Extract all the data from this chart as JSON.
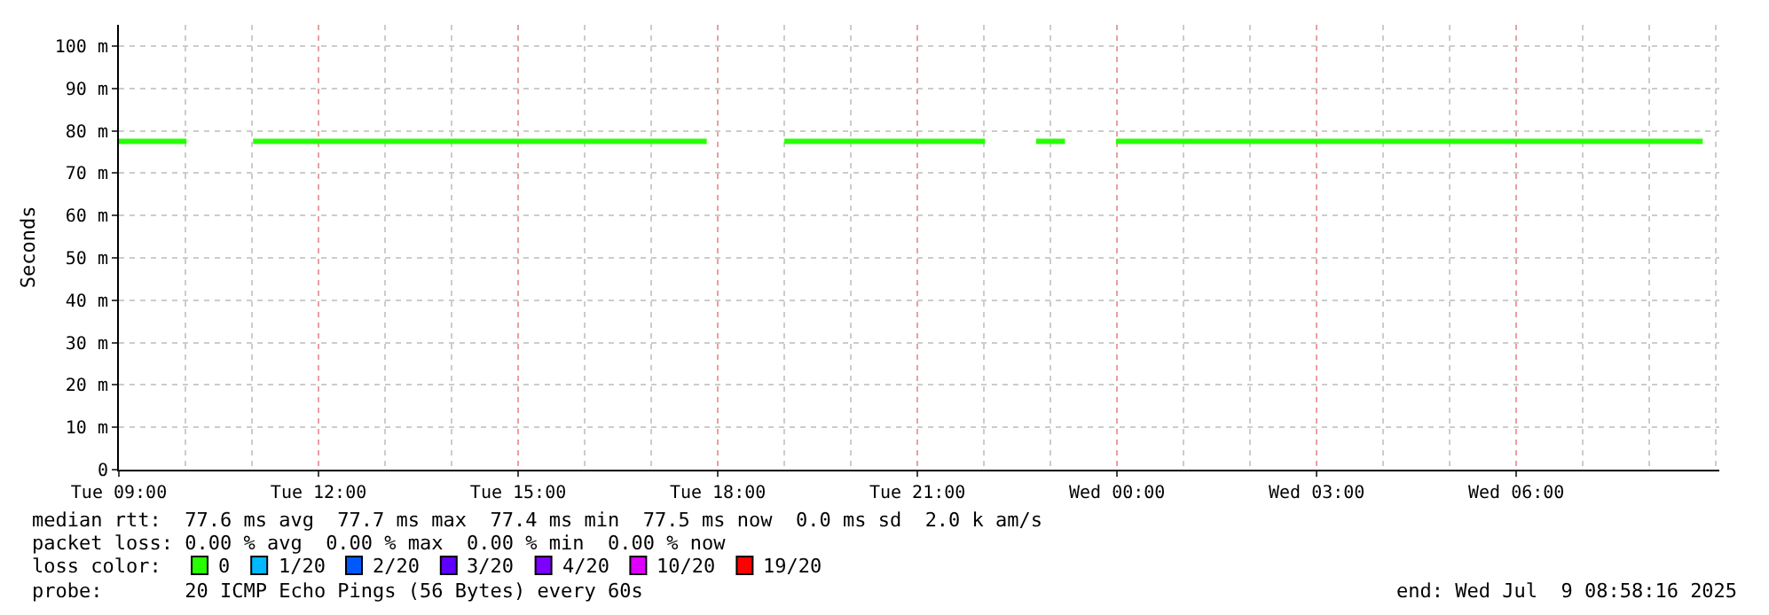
{
  "chart_data": {
    "type": "line",
    "ylabel": "Seconds",
    "xlim": [
      "2025-07-08T09:00",
      "2025-07-09T09:03"
    ],
    "xticks": [
      {
        "value": "2025-07-08T09:00",
        "label": "Tue 09:00"
      },
      {
        "value": "2025-07-08T12:00",
        "label": "Tue 12:00"
      },
      {
        "value": "2025-07-08T15:00",
        "label": "Tue 15:00"
      },
      {
        "value": "2025-07-08T18:00",
        "label": "Tue 18:00"
      },
      {
        "value": "2025-07-08T21:00",
        "label": "Tue 21:00"
      },
      {
        "value": "2025-07-09T00:00",
        "label": "Wed 00:00"
      },
      {
        "value": "2025-07-09T03:00",
        "label": "Wed 03:00"
      },
      {
        "value": "2025-07-09T06:00",
        "label": "Wed 06:00"
      }
    ],
    "ylim": [
      0,
      105
    ],
    "yticks": [
      {
        "value": 0,
        "label": "0"
      },
      {
        "value": 10,
        "label": "10 m"
      },
      {
        "value": 20,
        "label": "20 m"
      },
      {
        "value": 30,
        "label": "30 m"
      },
      {
        "value": 40,
        "label": "40 m"
      },
      {
        "value": 50,
        "label": "50 m"
      },
      {
        "value": 60,
        "label": "60 m"
      },
      {
        "value": 70,
        "label": "70 m"
      },
      {
        "value": 80,
        "label": "80 m"
      },
      {
        "value": 90,
        "label": "90 m"
      },
      {
        "value": 100,
        "label": "100 m"
      }
    ],
    "grid": true,
    "legend": "bottom left",
    "marker": "none",
    "line_style": "solid",
    "series": [
      {
        "name": "0",
        "color": "#26ff00",
        "x": [
          "2025-07-08T09:00",
          "2025-07-08T10:01",
          "2025-07-08T10:30",
          "2025-07-08T11:01",
          "2025-07-08T17:50",
          "2025-07-08T18:30",
          "2025-07-08T19:00",
          "2025-07-08T22:01",
          "2025-07-08T22:20",
          "2025-07-08T22:47",
          "2025-07-08T23:13",
          "2025-07-08T23:30",
          "2025-07-08T23:59",
          "2025-07-09T08:48"
        ],
        "values": [
          77.5,
          77.5,
          null,
          77.5,
          77.5,
          null,
          77.5,
          77.5,
          null,
          77.5,
          77.5,
          null,
          77.5,
          77.5
        ]
      },
      {
        "name": "1/20",
        "color": "#00b8ff"
      },
      {
        "name": "2/20",
        "color": "#0059ff"
      },
      {
        "name": "3/20",
        "color": "#5e00ff"
      },
      {
        "name": "4/20",
        "color": "#7e00ff"
      },
      {
        "name": "10/20",
        "color": "#dd00ff"
      },
      {
        "name": "19/20",
        "color": "#ff0000"
      }
    ],
    "annotations": [
      "median rtt:  77.6 ms avg  77.7 ms max  77.4 ms min  77.5 ms now  0.0 ms sd  2.0 k am/s",
      "packet loss: 0.00 % avg  0.00 % max  0.00 % min  0.00 % now",
      "loss color:",
      "probe:       20 ICMP Echo Pings (56 Bytes) every 60s",
      "end: Wed Jul  9 08:58:16 2025"
    ]
  }
}
